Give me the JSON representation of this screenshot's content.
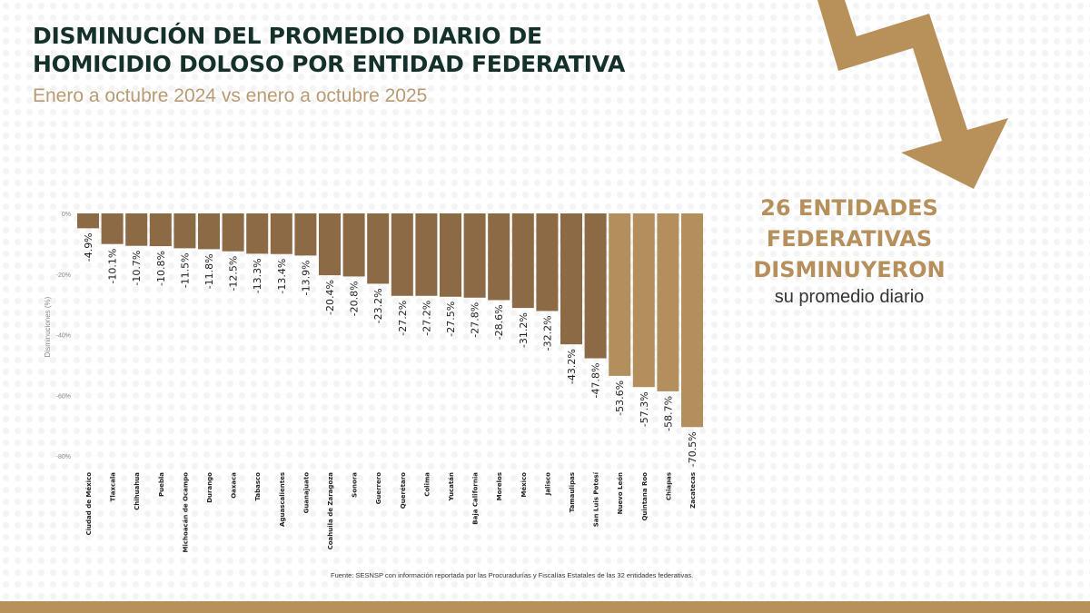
{
  "header": {
    "title_line1": "DISMINUCIÓN DEL PROMEDIO DIARIO DE",
    "title_line2": "HOMICIDIO DOLOSO POR ENTIDAD FEDERATIVA",
    "subtitle": "Enero a octubre 2024 vs enero a octubre 2025"
  },
  "callout": {
    "line1": "26 ENTIDADES",
    "line2": "FEDERATIVAS",
    "line3": "DISMINUYERON",
    "line4": "su promedio diario"
  },
  "source": "Fuente: SESNSP con información reportada por las Procuradurías y Fiscalías Estatales de las 32 entidades federativas.",
  "colors": {
    "dark_bar": "#8b6a45",
    "light_bar": "#b48f5e",
    "accent": "#b8905a",
    "title": "#14302a"
  },
  "arrow_icon": "trending-down-arrow",
  "chart_data": {
    "type": "bar",
    "ylabel": "Disminuciones (%)",
    "ylim": [
      -80,
      0
    ],
    "yticks": [
      "0%",
      "-20%",
      "-40%",
      "-60%",
      "-80%"
    ],
    "ytick_values": [
      0,
      -20,
      -40,
      -60,
      -80
    ],
    "grid": false,
    "categories": [
      "Ciudad de México",
      "Tlaxcala",
      "Chihuahua",
      "Puebla",
      "Michoacán de Ocampo",
      "Durango",
      "Oaxaca",
      "Tabasco",
      "Aguascalientes",
      "Guanajuato",
      "Coahuila de Zaragoza",
      "Sonora",
      "Guerrero",
      "Querétaro",
      "Colima",
      "Yucatán",
      "Baja California",
      "Morelos",
      "México",
      "Jalisco",
      "Tamaulipas",
      "San Luis Potosí",
      "Nuevo León",
      "Quintana Roo",
      "Chiapas",
      "Zacatecas"
    ],
    "values": [
      -4.9,
      -10.1,
      -10.7,
      -10.8,
      -11.5,
      -11.8,
      -12.5,
      -13.3,
      -13.4,
      -13.9,
      -20.4,
      -20.8,
      -23.2,
      -27.2,
      -27.2,
      -27.5,
      -27.8,
      -28.6,
      -31.2,
      -32.2,
      -43.2,
      -47.8,
      -53.6,
      -57.3,
      -58.7,
      -70.5
    ],
    "labels": [
      "-4.9%",
      "-10.1%",
      "-10.7%",
      "-10.8%",
      "-11.5%",
      "-11.8%",
      "-12.5%",
      "-13.3%",
      "-13.4%",
      "-13.9%",
      "-20.4%",
      "-20.8%",
      "-23.2%",
      "-27.2%",
      "-27.2%",
      "-27.5%",
      "-27.8%",
      "-28.6%",
      "-31.2%",
      "-32.2%",
      "-43.2%",
      "-47.8%",
      "-53.6%",
      "-57.3%",
      "-58.7%",
      "-70.5%"
    ]
  }
}
